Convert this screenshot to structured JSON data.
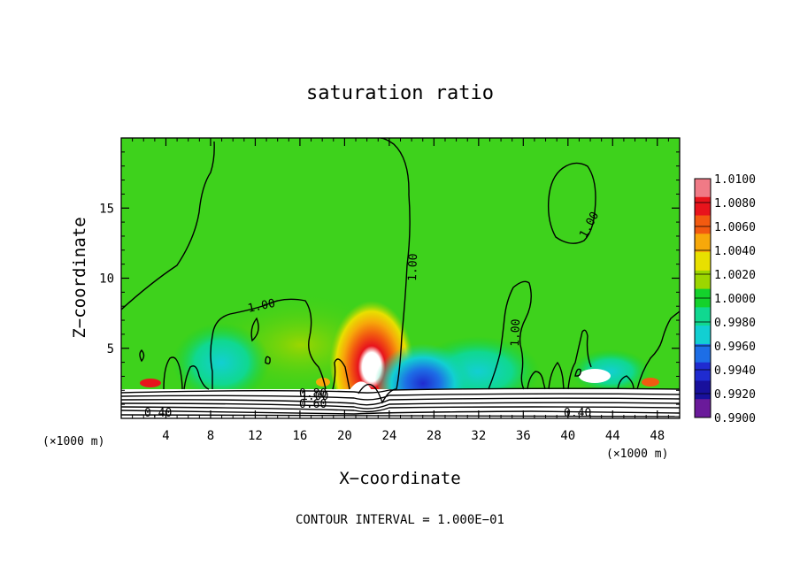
{
  "chart_data": {
    "type": "heatmap",
    "title": "saturation ratio",
    "xlabel": "X−coordinate",
    "ylabel": "Z−coordinate",
    "x_unit_label": "(×1000 m)",
    "x_ticks": [
      "4",
      "8",
      "12",
      "16",
      "20",
      "24",
      "28",
      "32",
      "36",
      "40",
      "44",
      "48"
    ],
    "y_ticks": [
      "5",
      "10",
      "15"
    ],
    "x_range": [
      0,
      50
    ],
    "y_range": [
      0,
      20
    ],
    "note": "CONTOUR INTERVAL = 1.000E−01",
    "contour_labels": [
      "1.00",
      "1.00",
      "1.00",
      "1.00",
      "1.00",
      "0.80",
      "0.60",
      "0.40",
      "0.40"
    ],
    "colorbar": {
      "labels": [
        "1.0100",
        "1.0080",
        "1.0060",
        "1.0040",
        "1.0020",
        "1.0000",
        "0.9980",
        "0.9960",
        "0.9940",
        "0.9920",
        "0.9900"
      ],
      "colors": [
        "#f07a86",
        "#e8141c",
        "#f25a10",
        "#f7a80a",
        "#e8e000",
        "#9cd600",
        "#14d22c",
        "#10d890",
        "#12cfd2",
        "#1d6ee6",
        "#1f2bd0",
        "#18109c",
        "#6a1a9a"
      ]
    }
  }
}
